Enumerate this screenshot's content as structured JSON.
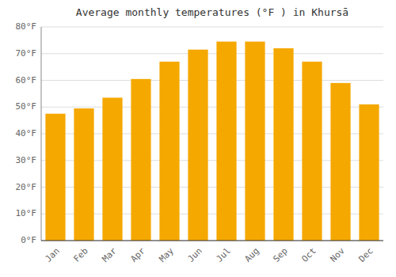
{
  "chart_data": {
    "type": "bar",
    "title": "Average monthly temperatures (°F ) in Khursā",
    "categories": [
      "Jan",
      "Feb",
      "Mar",
      "Apr",
      "May",
      "Jun",
      "Jul",
      "Aug",
      "Sep",
      "Oct",
      "Nov",
      "Dec"
    ],
    "values": [
      47.5,
      49.5,
      53.5,
      60.5,
      67.0,
      71.5,
      74.5,
      74.5,
      72.0,
      67.0,
      59.0,
      51.0
    ],
    "color": "#F5A800",
    "ylim": [
      0,
      80
    ],
    "yticks": [
      {
        "value": 0,
        "label": "0°F"
      },
      {
        "value": 10,
        "label": "10°F"
      },
      {
        "value": 20,
        "label": "20°F"
      },
      {
        "value": 30,
        "label": "30°F"
      },
      {
        "value": 40,
        "label": "40°F"
      },
      {
        "value": 50,
        "label": "50°F"
      },
      {
        "value": 60,
        "label": "60°F"
      },
      {
        "value": 70,
        "label": "70°F"
      },
      {
        "value": 80,
        "label": "80°F"
      }
    ],
    "grid": true
  }
}
